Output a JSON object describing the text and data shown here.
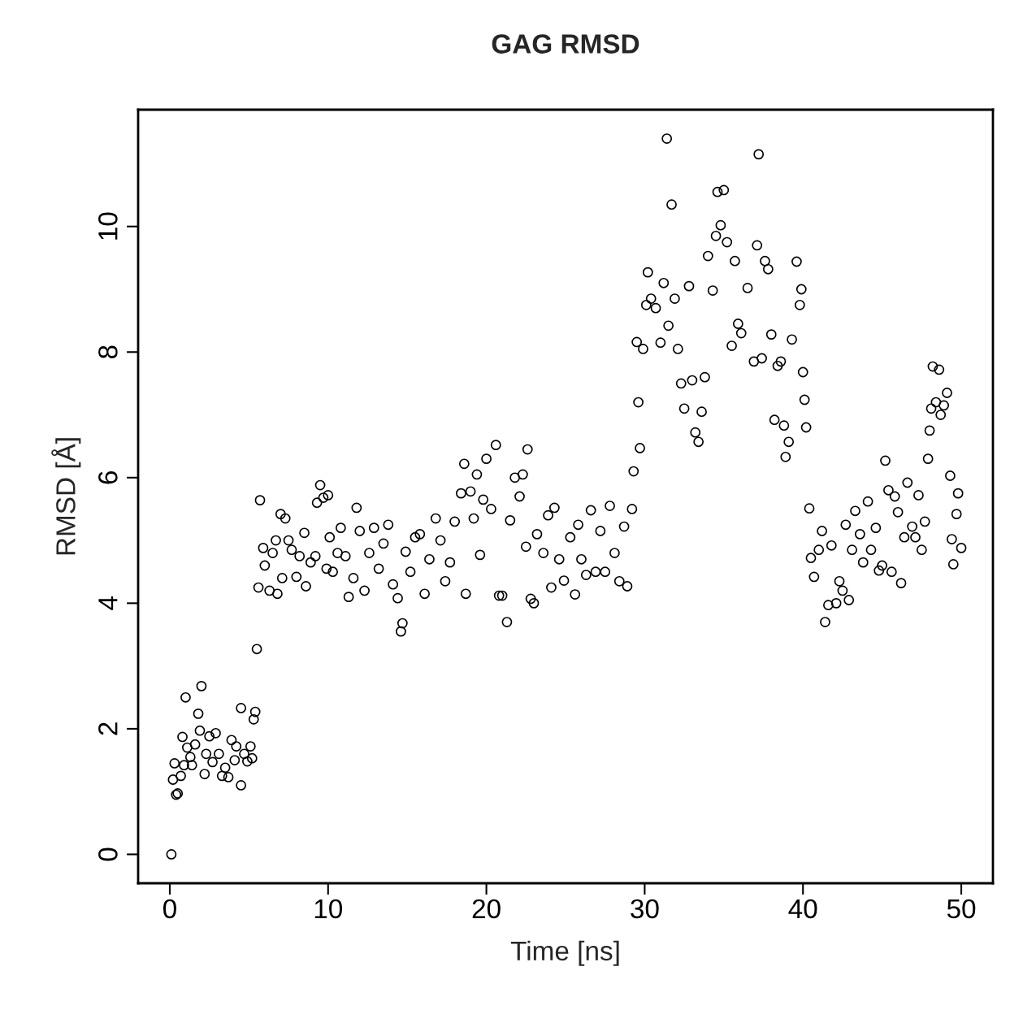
{
  "chart_data": {
    "type": "scatter",
    "title": "GAG RMSD",
    "xlabel": "Time [ns]",
    "ylabel": "RMSD [Å]",
    "color": "#000000",
    "marker": "circle",
    "xlim": [
      -2,
      52
    ],
    "ylim": [
      -0.46,
      11.86
    ],
    "xticks": [
      0,
      10,
      20,
      30,
      40,
      50
    ],
    "yticks": [
      0,
      2,
      4,
      6,
      8,
      10
    ],
    "x": [
      0.1,
      0.2,
      0.3,
      0.4,
      0.5,
      0.7,
      0.8,
      0.9,
      1.0,
      1.1,
      1.3,
      1.4,
      1.6,
      1.8,
      1.9,
      2.0,
      2.2,
      2.3,
      2.5,
      2.7,
      2.9,
      3.1,
      3.3,
      3.5,
      3.7,
      3.9,
      4.1,
      4.2,
      4.5,
      4.5,
      4.7,
      4.9,
      5.1,
      5.2,
      5.3,
      5.4,
      5.5,
      5.6,
      5.7,
      5.9,
      6.0,
      6.3,
      6.5,
      6.7,
      6.8,
      7.0,
      7.1,
      7.3,
      7.5,
      7.7,
      8.0,
      8.2,
      8.5,
      8.6,
      8.9,
      9.2,
      9.3,
      9.5,
      9.7,
      9.9,
      10.0,
      10.1,
      10.3,
      10.6,
      10.8,
      11.1,
      11.3,
      11.6,
      11.8,
      12.0,
      12.3,
      12.6,
      12.9,
      13.2,
      13.5,
      13.8,
      14.1,
      14.4,
      14.6,
      14.7,
      14.9,
      15.2,
      15.5,
      15.8,
      16.1,
      16.4,
      16.8,
      17.1,
      17.4,
      17.7,
      18.0,
      18.4,
      18.6,
      18.7,
      19.0,
      19.2,
      19.4,
      19.6,
      19.8,
      20.0,
      20.3,
      20.6,
      20.8,
      21.0,
      21.3,
      21.5,
      21.8,
      22.1,
      22.3,
      22.5,
      22.6,
      22.8,
      23.0,
      23.2,
      23.6,
      23.9,
      24.1,
      24.3,
      24.6,
      24.9,
      25.3,
      25.6,
      25.8,
      26.0,
      26.3,
      26.6,
      26.9,
      27.2,
      27.5,
      27.8,
      28.1,
      28.4,
      28.7,
      28.9,
      29.2,
      29.3,
      29.5,
      29.6,
      29.7,
      29.9,
      30.1,
      30.2,
      30.4,
      30.7,
      31.0,
      31.2,
      31.4,
      31.5,
      31.7,
      31.9,
      32.1,
      32.3,
      32.5,
      32.8,
      33.0,
      33.2,
      33.4,
      33.6,
      33.8,
      34.0,
      34.3,
      34.5,
      34.6,
      34.8,
      35.0,
      35.2,
      35.5,
      35.7,
      35.9,
      36.1,
      36.5,
      36.9,
      37.1,
      37.2,
      37.4,
      37.6,
      37.8,
      38.0,
      38.2,
      38.4,
      38.6,
      38.8,
      38.9,
      39.1,
      39.3,
      39.6,
      39.8,
      39.9,
      40.0,
      40.1,
      40.2,
      40.4,
      40.5,
      40.7,
      41.0,
      41.2,
      41.4,
      41.6,
      41.8,
      42.1,
      42.3,
      42.5,
      42.7,
      42.9,
      43.1,
      43.3,
      43.6,
      43.8,
      44.1,
      44.3,
      44.6,
      44.8,
      45.0,
      45.2,
      45.4,
      45.6,
      45.8,
      46.0,
      46.2,
      46.4,
      46.6,
      46.9,
      47.1,
      47.3,
      47.5,
      47.7,
      47.9,
      48.0,
      48.1,
      48.2,
      48.4,
      48.6,
      48.7,
      48.9,
      49.1,
      49.3,
      49.4,
      49.5,
      49.7,
      49.8,
      50.0
    ],
    "values": [
      0.0,
      1.19,
      1.45,
      0.95,
      0.97,
      1.25,
      1.87,
      1.42,
      2.5,
      1.7,
      1.55,
      1.42,
      1.75,
      2.24,
      1.97,
      2.68,
      1.28,
      1.6,
      1.88,
      1.47,
      1.93,
      1.6,
      1.25,
      1.38,
      1.23,
      1.82,
      1.5,
      1.72,
      1.1,
      2.33,
      1.6,
      1.48,
      1.72,
      1.53,
      2.15,
      2.27,
      3.27,
      4.25,
      5.64,
      4.88,
      4.6,
      4.2,
      4.8,
      5.0,
      4.15,
      5.42,
      4.4,
      5.35,
      5.0,
      4.85,
      4.42,
      4.75,
      5.12,
      4.27,
      4.65,
      4.75,
      5.6,
      5.88,
      5.68,
      4.55,
      5.72,
      5.05,
      4.5,
      4.8,
      5.2,
      4.75,
      4.1,
      4.4,
      5.52,
      5.15,
      4.2,
      4.8,
      5.2,
      4.55,
      4.95,
      5.25,
      4.3,
      4.08,
      3.55,
      3.68,
      4.82,
      4.5,
      5.05,
      5.1,
      4.15,
      4.7,
      5.35,
      5.0,
      4.35,
      4.65,
      5.3,
      5.75,
      6.22,
      4.15,
      5.78,
      5.35,
      6.05,
      4.77,
      5.65,
      6.3,
      5.5,
      6.52,
      4.12,
      4.12,
      3.7,
      5.32,
      6.0,
      5.7,
      6.05,
      4.9,
      6.45,
      4.07,
      4.0,
      5.1,
      4.8,
      5.4,
      4.25,
      5.52,
      4.7,
      4.36,
      5.05,
      4.14,
      5.25,
      4.7,
      4.45,
      5.48,
      4.5,
      5.15,
      4.5,
      5.55,
      4.8,
      4.35,
      5.22,
      4.27,
      5.5,
      6.1,
      8.16,
      7.2,
      6.47,
      8.05,
      8.75,
      9.27,
      8.85,
      8.7,
      8.15,
      9.1,
      11.4,
      8.42,
      10.35,
      8.85,
      8.05,
      7.5,
      7.1,
      9.05,
      7.55,
      6.72,
      6.57,
      7.05,
      7.6,
      9.53,
      8.98,
      9.85,
      10.55,
      10.02,
      10.58,
      9.75,
      8.1,
      9.45,
      8.45,
      8.3,
      9.02,
      7.85,
      9.7,
      11.15,
      7.9,
      9.45,
      9.32,
      8.28,
      6.92,
      7.78,
      7.85,
      6.83,
      6.33,
      6.57,
      8.2,
      9.44,
      8.75,
      9.0,
      7.68,
      7.24,
      6.8,
      5.51,
      4.72,
      4.42,
      4.85,
      5.15,
      3.7,
      3.97,
      4.92,
      4.0,
      4.35,
      4.2,
      5.25,
      4.05,
      4.85,
      5.47,
      5.1,
      4.65,
      5.62,
      4.85,
      5.2,
      4.52,
      4.6,
      6.27,
      5.8,
      4.5,
      5.7,
      5.45,
      4.32,
      5.05,
      5.92,
      5.22,
      5.05,
      5.72,
      4.85,
      5.3,
      6.3,
      6.75,
      7.1,
      7.77,
      7.2,
      7.72,
      7.0,
      7.15,
      7.35,
      6.03,
      5.02,
      4.62,
      5.42,
      5.75,
      4.88
    ]
  }
}
